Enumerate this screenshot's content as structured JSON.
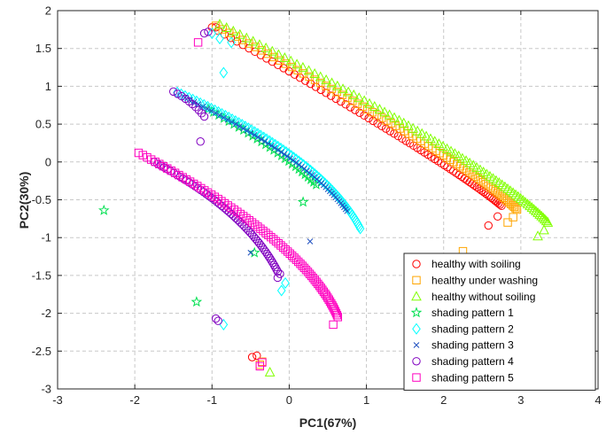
{
  "chart_data": {
    "type": "scatter",
    "xlabel": "PC1(67%)",
    "ylabel": "PC2(30%)",
    "xlim": [
      -3,
      4
    ],
    "ylim": [
      -3,
      2
    ],
    "xticks": [
      -3,
      -2,
      -1,
      0,
      1,
      2,
      3,
      4
    ],
    "yticks": [
      -3,
      -2.5,
      -2,
      -1.5,
      -1,
      -0.5,
      0,
      0.5,
      1,
      1.5,
      2
    ],
    "xtick_labels": [
      "-3",
      "-2",
      "-1",
      "0",
      "1",
      "2",
      "3",
      "4"
    ],
    "ytick_labels": [
      "-3",
      "-2.5",
      "-2",
      "-1.5",
      "-1",
      "-0.5",
      "0",
      "0.5",
      "1",
      "1.5",
      "2"
    ],
    "grid": true,
    "legend_position": "bottom-right",
    "series": [
      {
        "name": "healthy with soiling",
        "marker": "circle",
        "color": "#ff0000",
        "curve": {
          "from": [
            -1.0,
            1.78
          ],
          "to": [
            2.75,
            -0.58
          ],
          "ctrl": [
            2.05,
            0.02
          ],
          "n": 75
        },
        "points": [
          [
            2.58,
            -0.84
          ],
          [
            2.7,
            -0.72
          ],
          [
            -0.95,
            1.78
          ],
          [
            -0.42,
            -2.56
          ],
          [
            -0.48,
            -2.58
          ]
        ]
      },
      {
        "name": "healthy under washing",
        "marker": "square",
        "color": "#ffa500",
        "curve": {
          "from": [
            -0.95,
            1.8
          ],
          "to": [
            2.95,
            -0.63
          ],
          "ctrl": [
            2.3,
            0.03
          ],
          "n": 75
        },
        "points": [
          [
            2.83,
            -0.8
          ],
          [
            2.9,
            -0.73
          ],
          [
            2.25,
            -1.18
          ],
          [
            -0.38,
            -2.68
          ],
          [
            -0.35,
            -2.64
          ]
        ]
      },
      {
        "name": "healthy without soiling",
        "marker": "triangle",
        "color": "#80ff00",
        "curve": {
          "from": [
            -0.9,
            1.82
          ],
          "to": [
            3.35,
            -0.8
          ],
          "ctrl": [
            2.6,
            0.0
          ],
          "n": 80
        },
        "points": [
          [
            3.22,
            -0.98
          ],
          [
            3.3,
            -0.9
          ],
          [
            -0.25,
            -2.78
          ]
        ]
      },
      {
        "name": "shading pattern 1",
        "marker": "star",
        "color": "#00e050",
        "curve": {
          "from": [
            -1.05,
            0.7
          ],
          "to": [
            0.35,
            -0.3
          ],
          "ctrl": [
            -0.1,
            0.15
          ],
          "n": 28
        },
        "points": [
          [
            -2.4,
            -0.64
          ],
          [
            -1.2,
            -1.85
          ],
          [
            -0.45,
            -1.2
          ],
          [
            0.18,
            -0.53
          ]
        ]
      },
      {
        "name": "shading pattern 2",
        "marker": "diamond",
        "color": "#00ffff",
        "curve": {
          "from": [
            -1.45,
            0.92
          ],
          "to": [
            0.92,
            -0.88
          ],
          "ctrl": [
            0.45,
            0.05
          ],
          "n": 75
        },
        "points": [
          [
            -0.85,
            1.18
          ],
          [
            -0.05,
            -1.6
          ],
          [
            -0.1,
            -1.7
          ],
          [
            -0.85,
            -2.15
          ],
          [
            -1.0,
            1.7
          ],
          [
            -0.9,
            1.63
          ],
          [
            -0.75,
            1.58
          ]
        ]
      },
      {
        "name": "shading pattern 3",
        "marker": "x",
        "color": "#2050c0",
        "curve": {
          "from": [
            -1.35,
            0.85
          ],
          "to": [
            0.75,
            -0.65
          ],
          "ctrl": [
            0.25,
            0.05
          ],
          "n": 55
        },
        "points": [
          [
            0.27,
            -1.05
          ],
          [
            -0.5,
            -1.2
          ]
        ]
      },
      {
        "name": "shading pattern 4",
        "marker": "circle",
        "color": "#8000c0",
        "curve": {
          "from": [
            -1.5,
            0.93
          ],
          "to": [
            -1.1,
            0.6
          ],
          "ctrl": [
            -1.25,
            0.8
          ],
          "n": 10
        },
        "points": [
          [
            -1.15,
            0.27
          ],
          [
            -1.1,
            1.7
          ],
          [
            -1.05,
            1.72
          ],
          [
            -0.95,
            -2.07
          ],
          [
            -0.92,
            -2.1
          ],
          [
            -0.15,
            -1.53
          ],
          [
            -0.12,
            -1.48
          ]
        ],
        "curve2": {
          "from": [
            -1.75,
            0.0
          ],
          "to": [
            -0.15,
            -1.45
          ],
          "ctrl": [
            -0.55,
            -0.65
          ],
          "n": 55
        }
      },
      {
        "name": "shading pattern 5",
        "marker": "square",
        "color": "#ff00c0",
        "curve": {
          "from": [
            -1.95,
            0.12
          ],
          "to": [
            0.63,
            -2.05
          ],
          "ctrl": [
            0.22,
            -1.05
          ],
          "n": 80
        },
        "points": [
          [
            -1.18,
            1.58
          ],
          [
            0.57,
            -2.15
          ],
          [
            -0.35,
            -2.65
          ],
          [
            -0.38,
            -2.7
          ]
        ]
      }
    ]
  }
}
